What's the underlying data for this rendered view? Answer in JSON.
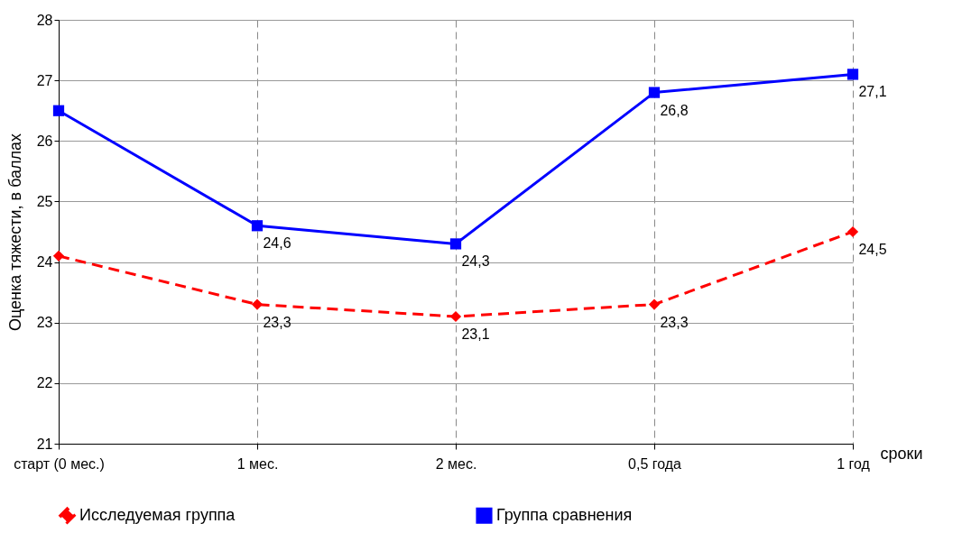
{
  "chart_data": {
    "type": "line",
    "ylabel": "Оценка тяжести, в баллах",
    "xlabel": "сроки",
    "categories": [
      "старт (0 мес.)",
      "1 мес.",
      "2 мес.",
      "0,5 года",
      "1 год"
    ],
    "series": [
      {
        "name": "Исследуемая группа",
        "color": "#ff0000",
        "marker": "diamond",
        "line_style": "dashed",
        "values": [
          24.1,
          23.3,
          23.1,
          23.3,
          24.5
        ],
        "value_labels": [
          null,
          "23,3",
          "23,1",
          "23,3",
          "24,5"
        ]
      },
      {
        "name": "Группа сравнения",
        "color": "#0000ff",
        "marker": "square",
        "line_style": "solid",
        "values": [
          26.5,
          24.6,
          24.3,
          26.8,
          27.1
        ],
        "value_labels": [
          null,
          "24,6",
          "24,3",
          "26,8",
          "27,1"
        ]
      }
    ],
    "ylim": [
      21,
      28
    ],
    "yticks": [
      21,
      22,
      23,
      24,
      25,
      26,
      27,
      28
    ],
    "grid": true,
    "legend": "bottom"
  }
}
